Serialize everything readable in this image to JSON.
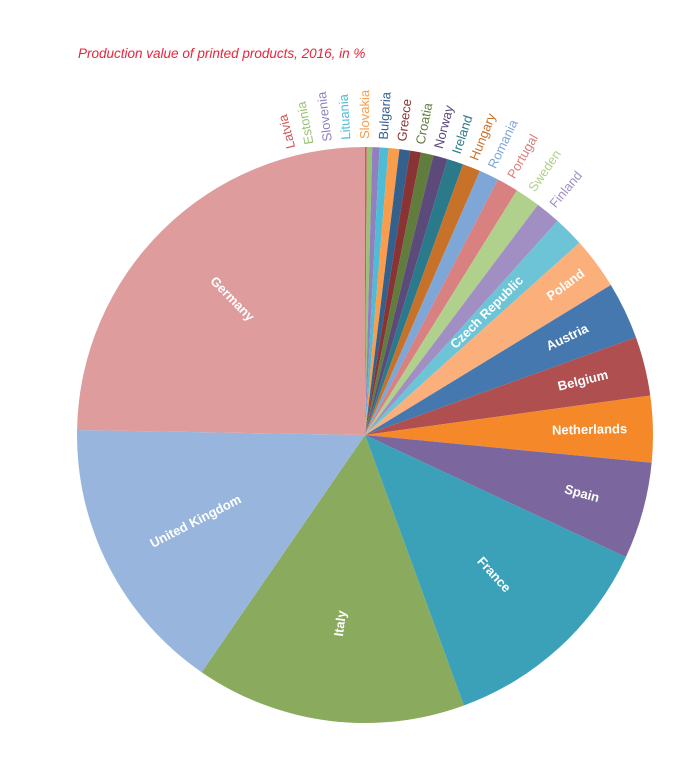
{
  "chart_data": {
    "type": "pie",
    "title": "Production value of printed products, 2016, in %",
    "start": "top, clockwise",
    "slices": [
      {
        "label": "Latvia",
        "value": 0.1,
        "color": "#c95b5b"
      },
      {
        "label": "Estonia",
        "value": 0.3,
        "color": "#9bc173"
      },
      {
        "label": "Slovenia",
        "value": 0.4,
        "color": "#9080bd"
      },
      {
        "label": "Lituania",
        "value": 0.5,
        "color": "#4fbcd6"
      },
      {
        "label": "Slovakia",
        "value": 0.6,
        "color": "#f99d4c"
      },
      {
        "label": "Bulgaria",
        "value": 0.6,
        "color": "#34608e"
      },
      {
        "label": "Greece",
        "value": 0.6,
        "color": "#8a3334"
      },
      {
        "label": "Croatia",
        "value": 0.7,
        "color": "#607d3d"
      },
      {
        "label": "Norway",
        "value": 0.8,
        "color": "#5b4a7a"
      },
      {
        "label": "Ireland",
        "value": 0.9,
        "color": "#2a7a8c"
      },
      {
        "label": "Hungary",
        "value": 1.0,
        "color": "#c87129"
      },
      {
        "label": "Romania",
        "value": 1.1,
        "color": "#7ea6d6"
      },
      {
        "label": "Portugal",
        "value": 1.2,
        "color": "#d98080"
      },
      {
        "label": "Sweden",
        "value": 1.4,
        "color": "#b0d18b"
      },
      {
        "label": "Finland",
        "value": 1.4,
        "color": "#a18fc4"
      },
      {
        "label": "Czech Republic",
        "value": 1.7,
        "color": "#6cc4d6"
      },
      {
        "label": "Poland",
        "value": 2.9,
        "color": "#fbb07b"
      },
      {
        "label": "Austria",
        "value": 3.2,
        "color": "#4678b0"
      },
      {
        "label": "Belgium",
        "value": 3.3,
        "color": "#b04f4f"
      },
      {
        "label": "Netherlands",
        "value": 3.7,
        "color": "#f5892a"
      },
      {
        "label": "Spain",
        "value": 5.4,
        "color": "#7b669e"
      },
      {
        "label": "France",
        "value": 12.4,
        "color": "#3aa1b8"
      },
      {
        "label": "Italy",
        "value": 15.1,
        "color": "#8aaa5d"
      },
      {
        "label": "United Kingdom",
        "value": 15.6,
        "color": "#98b6dd"
      },
      {
        "label": "Germany",
        "value": 24.6,
        "color": "#de9c9c"
      }
    ]
  }
}
